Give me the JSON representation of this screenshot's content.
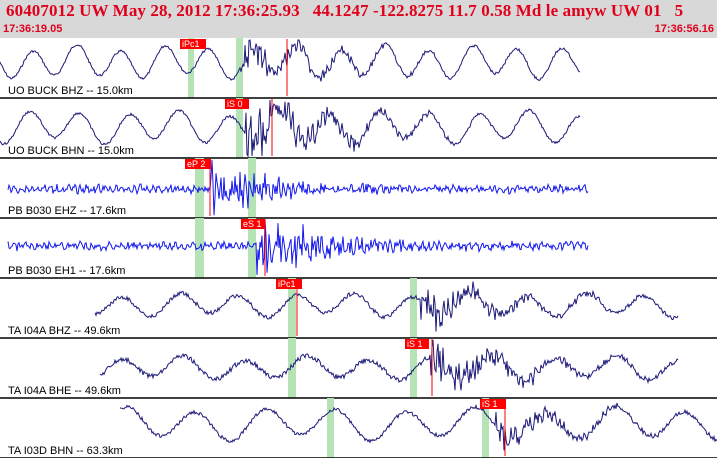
{
  "header": {
    "title": "60407012 UW May 28, 2012 17:36:25.93   44.1247 -122.8275 11.7 0.58 Md le amyw UW 01   5",
    "start_time": "17:36:19.05",
    "end_time": "17:36:56.16"
  },
  "colors": {
    "header_bg": "#d8d8d8",
    "header_text": "#e0001b",
    "trace_dark": "#1c1a78",
    "trace_blue": "#1418ee",
    "pick_red": "#ff0000",
    "window_green": "#b6e3b6",
    "separator": "#000000"
  },
  "traces": [
    {
      "label": "UO BUCK BHZ -- 15.0km",
      "pick": "iPc1"
    },
    {
      "label": "UO BUCK BHN -- 15.0km",
      "pick": "iS 0"
    },
    {
      "label": "PB B030 EHZ -- 17.6km",
      "pick": "eP 2"
    },
    {
      "label": "PB B030 EH1 -- 17.6km",
      "pick": "eS 1"
    },
    {
      "label": "TA I04A BHZ -- 49.6km",
      "pick": "iPc1"
    },
    {
      "label": "TA I04A BHE -- 49.6km",
      "pick": "iS 1"
    },
    {
      "label": "TA I03D BHN -- 63.3km",
      "pick": "iS 1"
    }
  ]
}
